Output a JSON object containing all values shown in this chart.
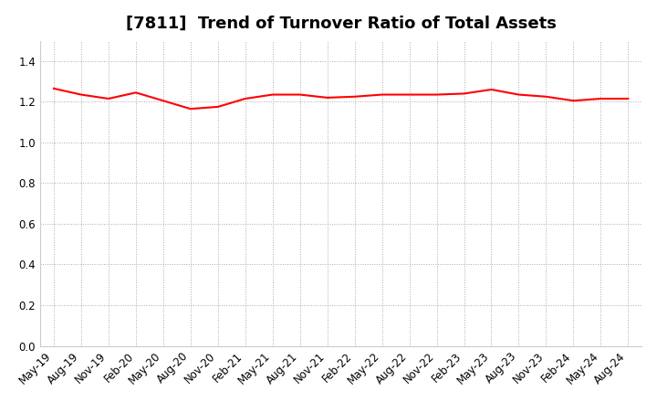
{
  "title": "[7811]  Trend of Turnover Ratio of Total Assets",
  "x_labels": [
    "May-19",
    "Aug-19",
    "Nov-19",
    "Feb-20",
    "May-20",
    "Aug-20",
    "Nov-20",
    "Feb-21",
    "May-21",
    "Aug-21",
    "Nov-21",
    "Feb-22",
    "May-22",
    "Aug-22",
    "Nov-22",
    "Feb-23",
    "May-23",
    "Aug-23",
    "Nov-23",
    "Feb-24",
    "May-24",
    "Aug-24"
  ],
  "values": [
    1.265,
    1.235,
    1.215,
    1.245,
    1.205,
    1.165,
    1.175,
    1.215,
    1.235,
    1.235,
    1.22,
    1.225,
    1.235,
    1.235,
    1.235,
    1.24,
    1.26,
    1.235,
    1.225,
    1.205,
    1.215,
    1.215
  ],
  "line_color": "#ff0000",
  "background_color": "#ffffff",
  "plot_bg_color": "#ffffff",
  "grid_color": "#aaaaaa",
  "ylim": [
    0.0,
    1.5
  ],
  "yticks": [
    0.0,
    0.2,
    0.4,
    0.6,
    0.8,
    1.0,
    1.2,
    1.4
  ],
  "title_fontsize": 13,
  "tick_fontsize": 8.5
}
